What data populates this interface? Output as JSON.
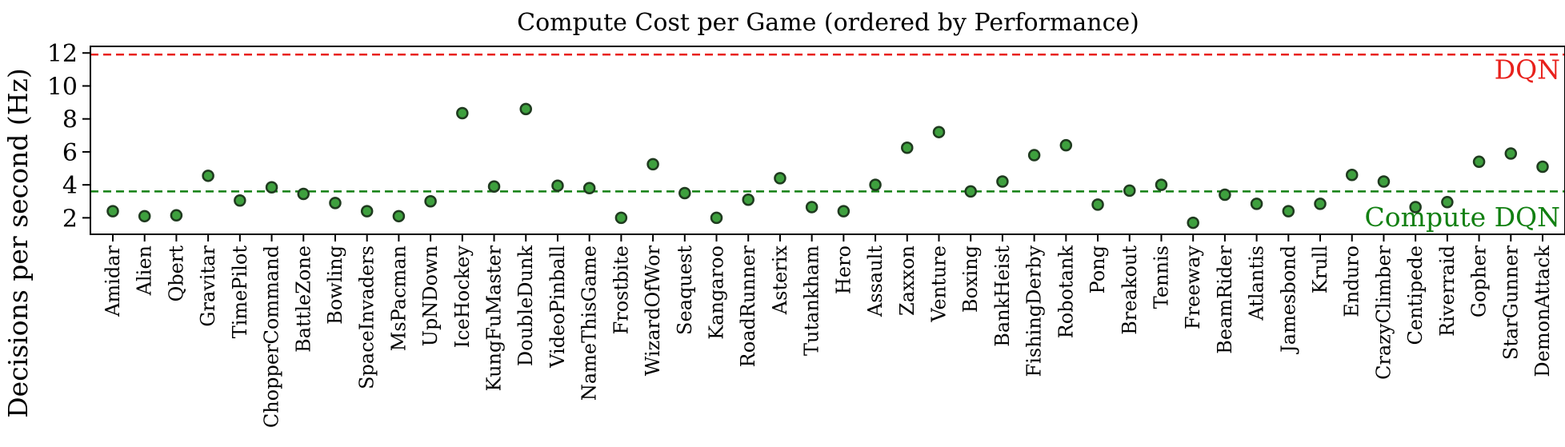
{
  "chart_data": {
    "type": "scatter",
    "title": "Compute Cost per Game (ordered by Performance)",
    "xlabel": "",
    "ylabel": "Decisions per second (Hz)",
    "ylim": [
      1.0,
      12.4
    ],
    "yticks": [
      2,
      4,
      6,
      8,
      10,
      12
    ],
    "grid": false,
    "categories": [
      "Amidar",
      "Alien",
      "Qbert",
      "Gravitar",
      "TimePilot",
      "ChopperCommand",
      "BattleZone",
      "Bowling",
      "SpaceInvaders",
      "MsPacman",
      "UpNDown",
      "IceHockey",
      "KungFuMaster",
      "DoubleDunk",
      "VideoPinball",
      "NameThisGame",
      "Frostbite",
      "WizardOfWor",
      "Seaquest",
      "Kangaroo",
      "RoadRunner",
      "Asterix",
      "Tutankham",
      "Hero",
      "Assault",
      "Zaxxon",
      "Venture",
      "Boxing",
      "BankHeist",
      "FishingDerby",
      "Robotank",
      "Pong",
      "Breakout",
      "Tennis",
      "Freeway",
      "BeamRider",
      "Atlantis",
      "Jamesbond",
      "Krull",
      "Enduro",
      "CrazyClimber",
      "Centipede",
      "Riverraid",
      "Gopher",
      "StarGunner",
      "DemonAttack"
    ],
    "values": [
      2.4,
      2.1,
      2.15,
      4.55,
      3.05,
      3.85,
      3.45,
      2.9,
      2.4,
      2.1,
      3.0,
      8.35,
      3.9,
      8.6,
      3.95,
      3.8,
      2.0,
      5.25,
      3.5,
      2.0,
      3.1,
      4.4,
      2.65,
      2.4,
      4.0,
      6.25,
      7.2,
      3.6,
      4.2,
      5.8,
      6.4,
      2.8,
      3.65,
      4.0,
      1.7,
      3.4,
      2.85,
      2.4,
      2.85,
      4.6,
      4.2,
      2.65,
      2.95,
      5.4,
      5.9,
      5.1
    ],
    "marker_color": "#3ea03e",
    "marker_edge": "#1f3a1f",
    "reference_lines": [
      {
        "label": "DQN",
        "value": 11.9,
        "color": "#e8211c",
        "style": "dashed"
      },
      {
        "label": "Compute DQN",
        "value": 3.6,
        "color": "#128012",
        "style": "dashed"
      }
    ]
  }
}
